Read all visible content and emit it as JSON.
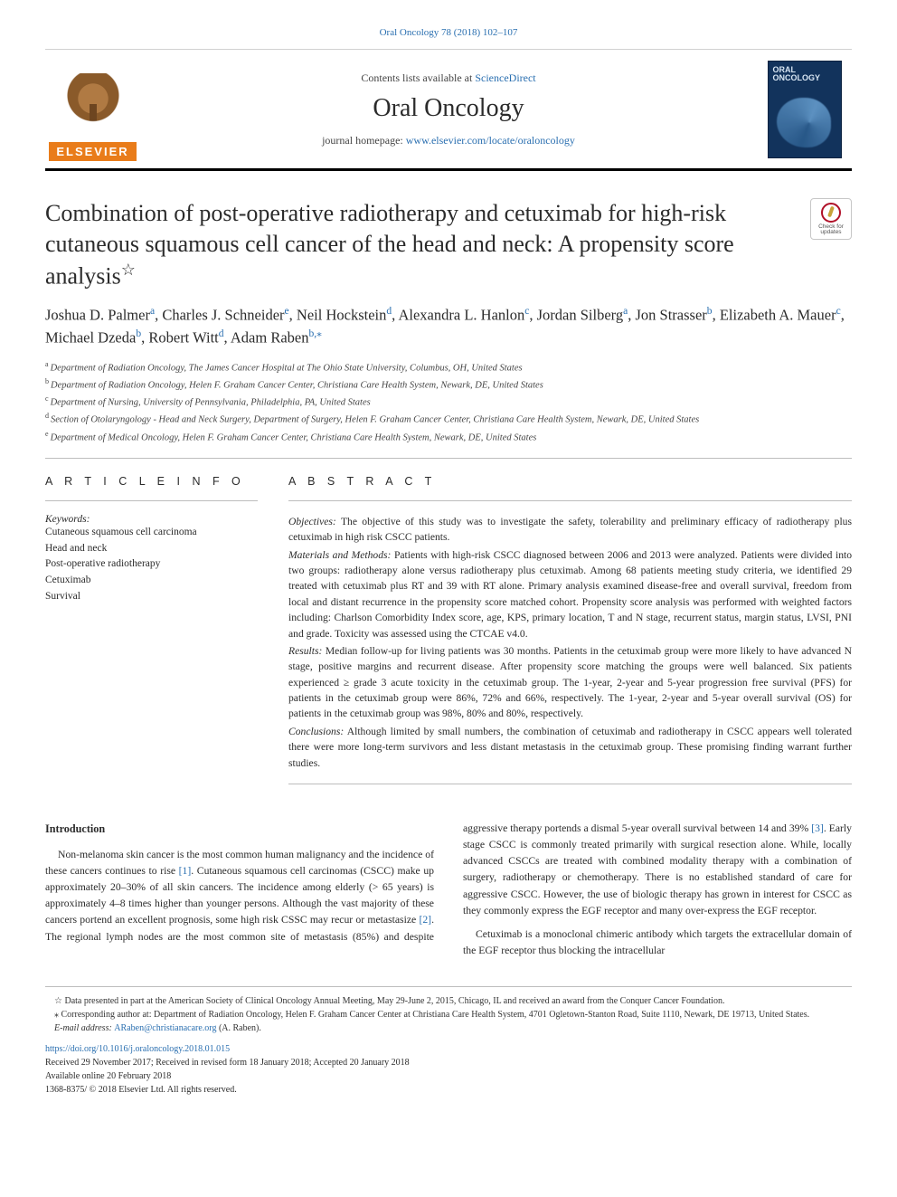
{
  "background_color": "#ffffff",
  "link_color": "#2a6fb0",
  "rule_color": "#bdbdbd",
  "top_citation": {
    "journal_link_text": "Oral Oncology 78 (2018) 102–107",
    "journal_link_href": "#"
  },
  "masthead": {
    "contents_line_pre": "Contents lists available at ",
    "contents_link": "ScienceDirect",
    "journal_name": "Oral Oncology",
    "homepage_pre": "journal homepage: ",
    "homepage_link": "www.elsevier.com/locate/oraloncology",
    "publisher_word": "ELSEVIER",
    "cover_label": "ORAL ONCOLOGY"
  },
  "check_badge": {
    "line": "Check for updates"
  },
  "title": {
    "text": "Combination of post-operative radiotherapy and cetuximab for high-risk cutaneous squamous cell cancer of the head and neck: A propensity score analysis",
    "star": "☆"
  },
  "authors_html_parts": [
    {
      "name": "Joshua D. Palmer",
      "sup": "a"
    },
    {
      "name": "Charles J. Schneider",
      "sup": "e"
    },
    {
      "name": "Neil Hockstein",
      "sup": "d"
    },
    {
      "name": "Alexandra L. Hanlon",
      "sup": "c"
    },
    {
      "name": "Jordan Silberg",
      "sup": "a"
    },
    {
      "name": "Jon Strasser",
      "sup": "b"
    },
    {
      "name": "Elizabeth A. Mauer",
      "sup": "c"
    },
    {
      "name": "Michael Dzeda",
      "sup": "b"
    },
    {
      "name": "Robert Witt",
      "sup": "d"
    },
    {
      "name": "Adam Raben",
      "sup": "b,⁎"
    }
  ],
  "affiliations": [
    {
      "sup": "a",
      "text": "Department of Radiation Oncology, The James Cancer Hospital at The Ohio State University, Columbus, OH, United States"
    },
    {
      "sup": "b",
      "text": "Department of Radiation Oncology, Helen F. Graham Cancer Center, Christiana Care Health System, Newark, DE, United States"
    },
    {
      "sup": "c",
      "text": "Department of Nursing, University of Pennsylvania, Philadelphia, PA, United States"
    },
    {
      "sup": "d",
      "text": "Section of Otolaryngology - Head and Neck Surgery, Department of Surgery, Helen F. Graham Cancer Center, Christiana Care Health System, Newark, DE, United States"
    },
    {
      "sup": "e",
      "text": "Department of Medical Oncology, Helen F. Graham Cancer Center, Christiana Care Health System, Newark, DE, United States"
    }
  ],
  "article_info": {
    "heading": "A R T I C L E   I N F O",
    "keywords_label": "Keywords:",
    "keywords": [
      "Cutaneous squamous cell carcinoma",
      "Head and neck",
      "Post-operative radiotherapy",
      "Cetuximab",
      "Survival"
    ]
  },
  "abstract": {
    "heading": "A B S T R A C T",
    "objectives_label": "Objectives:",
    "objectives": "The objective of this study was to investigate the safety, tolerability and preliminary efficacy of radiotherapy plus cetuximab in high risk CSCC patients.",
    "methods_label": "Materials and Methods:",
    "methods": "Patients with high-risk CSCC diagnosed between 2006 and 2013 were analyzed. Patients were divided into two groups: radiotherapy alone versus radiotherapy plus cetuximab. Among 68 patients meeting study criteria, we identified 29 treated with cetuximab plus RT and 39 with RT alone. Primary analysis examined disease-free and overall survival, freedom from local and distant recurrence in the propensity score matched cohort. Propensity score analysis was performed with weighted factors including: Charlson Comorbidity Index score, age, KPS, primary location, T and N stage, recurrent status, margin status, LVSI, PNI and grade. Toxicity was assessed using the CTCAE v4.0.",
    "results_label": "Results:",
    "results": "Median follow-up for living patients was 30 months. Patients in the cetuximab group were more likely to have advanced N stage, positive margins and recurrent disease. After propensity score matching the groups were well balanced. Six patients experienced ≥ grade 3 acute toxicity in the cetuximab group. The 1-year, 2-year and 5-year progression free survival (PFS) for patients in the cetuximab group were 86%, 72% and 66%, respectively. The 1-year, 2-year and 5-year overall survival (OS) for patients in the cetuximab group was 98%, 80% and 80%, respectively.",
    "conclusions_label": "Conclusions:",
    "conclusions": "Although limited by small numbers, the combination of cetuximab and radiotherapy in CSCC appears well tolerated there were more long-term survivors and less distant metastasis in the cetuximab group. These promising finding warrant further studies."
  },
  "intro": {
    "heading": "Introduction",
    "p1_pre": "Non-melanoma skin cancer is the most common human malignancy and the incidence of these cancers continues to rise ",
    "p1_cite1": "[1]",
    "p1_mid": ". Cutaneous squamous cell carcinomas (CSCC) make up approximately 20–30% of all skin cancers. The incidence among elderly (> 65 years) is approximately 4–8 times higher than younger persons. Although the vast majority of these cancers portend an excellent prognosis, some high risk CSSC may recur or metastasize ",
    "p1_cite2": "[2]",
    "p1_post": ". The regional lymph nodes are the most common site of metastasis (85%) and despite aggressive therapy",
    "p2_pre": "portends a dismal 5-year overall survival between 14 and 39% ",
    "p2_cite": "[3]",
    "p2_post": ". Early stage CSCC is commonly treated primarily with surgical resection alone. While, locally advanced CSCCs are treated with combined modality therapy with a combination of surgery, radiotherapy or chemotherapy. There is no established standard of care for aggressive CSCC. However, the use of biologic therapy has grown in interest for CSCC as they commonly express the EGF receptor and many over-express the EGF receptor.",
    "p3": "Cetuximab is a monoclonal chimeric antibody which targets the extracellular domain of the EGF receptor thus blocking the intracellular"
  },
  "footnotes": {
    "fn1_mark": "☆",
    "fn1": "Data presented in part at the American Society of Clinical Oncology Annual Meeting, May 29-June 2, 2015, Chicago, IL and received an award from the Conquer Cancer Foundation.",
    "fn2_mark": "⁎",
    "fn2": "Corresponding author at: Department of Radiation Oncology, Helen F. Graham Cancer Center at Christiana Care Health System, 4701 Ogletown-Stanton Road, Suite 1110, Newark, DE 19713, United States.",
    "email_label": "E-mail address: ",
    "email": "ARaben@christianacare.org",
    "email_person": " (A. Raben)."
  },
  "meta": {
    "doi": "https://doi.org/10.1016/j.oraloncology.2018.01.015",
    "history": "Received 29 November 2017; Received in revised form 18 January 2018; Accepted 20 January 2018",
    "online": "Available online 20 February 2018",
    "copyright": "1368-8375/ © 2018 Elsevier Ltd. All rights reserved."
  }
}
